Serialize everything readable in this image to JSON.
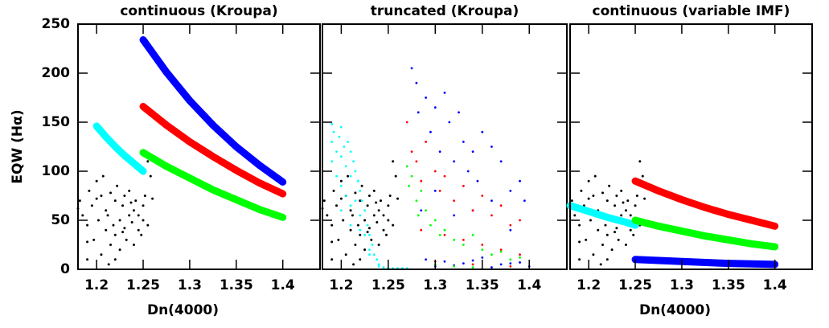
{
  "chart_data": [
    {
      "type": "scatter",
      "title": "continuous (Kroupa)",
      "x_label": "Dn(4000)",
      "y_label": "EQW (Hα)",
      "xlim": [
        1.18,
        1.44
      ],
      "xticks": [
        1.2,
        1.25,
        1.3,
        1.35,
        1.4
      ],
      "ylim": [
        0,
        250
      ],
      "yticks": [
        0,
        50,
        100,
        150,
        200,
        250
      ],
      "series": [
        {
          "color": "#000000",
          "mode": "points",
          "x": [
            1.18,
            1.182,
            1.185,
            1.19,
            1.19,
            1.192,
            1.195,
            1.197,
            1.2,
            1.2,
            1.202,
            1.205,
            1.205,
            1.207,
            1.21,
            1.21,
            1.212,
            1.215,
            1.215,
            1.218,
            1.22,
            1.22,
            1.222,
            1.225,
            1.225,
            1.228,
            1.23,
            1.23,
            1.232,
            1.235,
            1.235,
            1.238,
            1.24,
            1.24,
            1.242,
            1.245,
            1.245,
            1.248,
            1.25,
            1.25,
            1.252,
            1.255,
            1.255,
            1.258,
            1.26,
            1.22,
            1.213,
            1.19,
            1.237,
            1.228
          ],
          "values": [
            62,
            70,
            55,
            45,
            10,
            80,
            65,
            30,
            72,
            90,
            50,
            15,
            75,
            95,
            60,
            40,
            55,
            78,
            25,
            45,
            70,
            35,
            85,
            50,
            20,
            65,
            42,
            75,
            30,
            55,
            80,
            48,
            60,
            25,
            70,
            40,
            55,
            35,
            65,
            50,
            75,
            45,
            110,
            95,
            72,
            10,
            5,
            28,
            68,
            38
          ]
        },
        {
          "color": "#00ffff",
          "mode": "line",
          "x": [
            1.2,
            1.21,
            1.22,
            1.23,
            1.24,
            1.25
          ],
          "values": [
            146,
            135,
            125,
            116,
            108,
            100
          ]
        },
        {
          "color": "#0000ff",
          "mode": "line",
          "x": [
            1.25,
            1.275,
            1.3,
            1.325,
            1.35,
            1.375,
            1.4
          ],
          "values": [
            234,
            201,
            172,
            147,
            125,
            106,
            89
          ]
        },
        {
          "color": "#ff0000",
          "mode": "line",
          "x": [
            1.25,
            1.275,
            1.3,
            1.325,
            1.35,
            1.375,
            1.4
          ],
          "values": [
            166,
            147,
            130,
            115,
            101,
            88,
            77
          ]
        },
        {
          "color": "#00ff00",
          "mode": "line",
          "x": [
            1.25,
            1.275,
            1.3,
            1.325,
            1.35,
            1.375,
            1.4
          ],
          "values": [
            119,
            105,
            93,
            81,
            71,
            61,
            53
          ]
        }
      ]
    },
    {
      "type": "scatter",
      "title": "truncated (Kroupa)",
      "xlim": [
        1.18,
        1.44
      ],
      "xticks": [
        1.2,
        1.25,
        1.3,
        1.35,
        1.4
      ],
      "ylim": [
        0,
        250
      ],
      "yticks": [
        0,
        50,
        100,
        150,
        200,
        250
      ],
      "series": [
        {
          "color": "#000000",
          "mode": "points",
          "x": [
            1.18,
            1.182,
            1.185,
            1.19,
            1.19,
            1.192,
            1.195,
            1.197,
            1.2,
            1.2,
            1.202,
            1.205,
            1.205,
            1.207,
            1.21,
            1.21,
            1.212,
            1.215,
            1.215,
            1.218,
            1.22,
            1.22,
            1.222,
            1.225,
            1.225,
            1.228,
            1.23,
            1.23,
            1.232,
            1.235,
            1.235,
            1.238,
            1.24,
            1.24,
            1.242,
            1.245,
            1.245,
            1.248,
            1.25,
            1.25,
            1.252,
            1.255,
            1.255,
            1.258,
            1.26,
            1.22,
            1.213,
            1.19,
            1.237,
            1.228
          ],
          "values": [
            62,
            70,
            55,
            45,
            10,
            80,
            65,
            30,
            72,
            90,
            50,
            15,
            75,
            95,
            60,
            40,
            55,
            78,
            25,
            45,
            70,
            35,
            85,
            50,
            20,
            65,
            42,
            75,
            30,
            55,
            80,
            48,
            60,
            25,
            70,
            40,
            55,
            35,
            65,
            50,
            75,
            45,
            110,
            95,
            72,
            10,
            5,
            28,
            68,
            38
          ]
        },
        {
          "color": "#00ffff",
          "mode": "points",
          "x": [
            1.19,
            1.19,
            1.19,
            1.192,
            1.195,
            1.195,
            1.198,
            1.2,
            1.2,
            1.2,
            1.203,
            1.205,
            1.205,
            1.207,
            1.21,
            1.21,
            1.21,
            1.213,
            1.215,
            1.215,
            1.218,
            1.22,
            1.22,
            1.222,
            1.225,
            1.225,
            1.228,
            1.23,
            1.23,
            1.233,
            1.235,
            1.238,
            1.24,
            1.245,
            1.25,
            1.255,
            1.26,
            1.265,
            1.27,
            1.2,
            1.21,
            1.22,
            1.23,
            1.24,
            1.25
          ],
          "values": [
            148,
            130,
            110,
            140,
            120,
            95,
            135,
            145,
            115,
            85,
            125,
            105,
            75,
            130,
            120,
            95,
            65,
            110,
            100,
            70,
            90,
            80,
            55,
            70,
            60,
            35,
            45,
            35,
            20,
            25,
            15,
            10,
            5,
            2,
            1,
            1,
            1,
            1,
            1,
            60,
            45,
            40,
            15,
            3,
            0
          ]
        },
        {
          "color": "#0000ff",
          "mode": "points",
          "x": [
            1.275,
            1.28,
            1.282,
            1.29,
            1.295,
            1.3,
            1.305,
            1.31,
            1.315,
            1.32,
            1.325,
            1.33,
            1.335,
            1.34,
            1.345,
            1.35,
            1.36,
            1.37,
            1.38,
            1.39,
            1.395,
            1.285,
            1.3,
            1.32,
            1.34,
            1.36,
            1.38,
            1.29,
            1.31,
            1.33,
            1.35,
            1.37,
            1.39,
            1.3,
            1.32,
            1.34,
            1.36,
            1.38,
            1.4
          ],
          "values": [
            205,
            190,
            160,
            175,
            140,
            165,
            120,
            180,
            150,
            110,
            160,
            130,
            100,
            120,
            90,
            140,
            125,
            110,
            80,
            90,
            70,
            60,
            80,
            55,
            60,
            70,
            40,
            10,
            8,
            6,
            12,
            5,
            7,
            3,
            4,
            9,
            2,
            6,
            3
          ]
        },
        {
          "color": "#ff0000",
          "mode": "points",
          "x": [
            1.27,
            1.275,
            1.28,
            1.285,
            1.29,
            1.3,
            1.305,
            1.31,
            1.32,
            1.33,
            1.34,
            1.35,
            1.36,
            1.37,
            1.38,
            1.39,
            1.285,
            1.31,
            1.33,
            1.35,
            1.37,
            1.39,
            1.3,
            1.34,
            1.38
          ],
          "values": [
            150,
            120,
            110,
            90,
            130,
            100,
            80,
            95,
            70,
            85,
            60,
            75,
            55,
            65,
            45,
            50,
            40,
            35,
            30,
            25,
            20,
            15,
            8,
            5,
            3
          ]
        },
        {
          "color": "#00ff00",
          "mode": "points",
          "x": [
            1.27,
            1.272,
            1.275,
            1.28,
            1.282,
            1.285,
            1.29,
            1.295,
            1.3,
            1.305,
            1.31,
            1.32,
            1.33,
            1.34,
            1.35,
            1.36,
            1.37,
            1.38,
            1.39,
            1.3,
            1.32,
            1.34
          ],
          "values": [
            105,
            85,
            95,
            70,
            55,
            80,
            60,
            45,
            50,
            35,
            40,
            30,
            25,
            35,
            20,
            15,
            18,
            10,
            12,
            5,
            3,
            2
          ]
        }
      ]
    },
    {
      "type": "scatter",
      "title": "continuous (variable IMF)",
      "x_label": "Dn(4000)",
      "xlim": [
        1.18,
        1.44
      ],
      "xticks": [
        1.2,
        1.25,
        1.3,
        1.35,
        1.4
      ],
      "ylim": [
        0,
        250
      ],
      "yticks": [
        0,
        50,
        100,
        150,
        200,
        250
      ],
      "series": [
        {
          "color": "#000000",
          "mode": "points",
          "x": [
            1.18,
            1.182,
            1.185,
            1.19,
            1.19,
            1.192,
            1.195,
            1.197,
            1.2,
            1.2,
            1.202,
            1.205,
            1.205,
            1.207,
            1.21,
            1.21,
            1.212,
            1.215,
            1.215,
            1.218,
            1.22,
            1.22,
            1.222,
            1.225,
            1.225,
            1.228,
            1.23,
            1.23,
            1.232,
            1.235,
            1.235,
            1.238,
            1.24,
            1.24,
            1.242,
            1.245,
            1.245,
            1.248,
            1.25,
            1.25,
            1.252,
            1.255,
            1.255,
            1.258,
            1.26,
            1.22,
            1.213,
            1.19,
            1.237,
            1.228
          ],
          "values": [
            62,
            70,
            55,
            45,
            10,
            80,
            65,
            30,
            72,
            90,
            50,
            15,
            75,
            95,
            60,
            40,
            55,
            78,
            25,
            45,
            70,
            35,
            85,
            50,
            20,
            65,
            42,
            75,
            30,
            55,
            80,
            48,
            60,
            25,
            70,
            40,
            55,
            35,
            65,
            50,
            75,
            45,
            110,
            95,
            72,
            10,
            5,
            28,
            68,
            38
          ]
        },
        {
          "color": "#00ffff",
          "mode": "line",
          "x": [
            1.18,
            1.2,
            1.22,
            1.24,
            1.25
          ],
          "values": [
            65,
            59,
            53,
            48,
            45
          ]
        },
        {
          "color": "#ff0000",
          "mode": "line",
          "x": [
            1.25,
            1.275,
            1.3,
            1.325,
            1.35,
            1.375,
            1.4
          ],
          "values": [
            90,
            80,
            71,
            63,
            56,
            50,
            44
          ]
        },
        {
          "color": "#00ff00",
          "mode": "line",
          "x": [
            1.25,
            1.275,
            1.3,
            1.325,
            1.35,
            1.375,
            1.4
          ],
          "values": [
            50,
            44,
            39,
            34,
            30,
            26,
            23
          ]
        },
        {
          "color": "#0000ff",
          "mode": "line",
          "x": [
            1.25,
            1.3,
            1.35,
            1.4
          ],
          "values": [
            10,
            8,
            6,
            5
          ]
        }
      ]
    }
  ]
}
